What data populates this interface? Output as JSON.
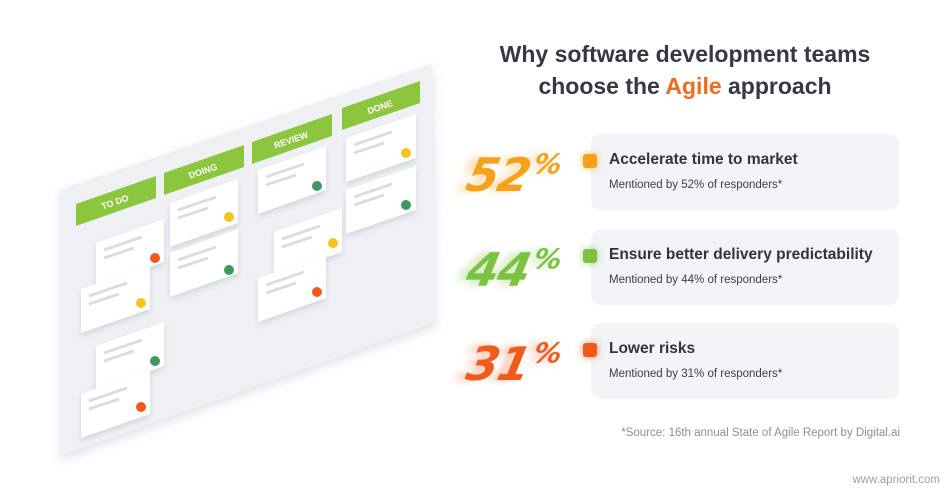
{
  "title": {
    "line1": "Why software development teams",
    "line2_prefix": "choose the ",
    "line2_accent": "Agile",
    "line2_suffix": " approach"
  },
  "board": {
    "columns": [
      "TO DO",
      "DOING",
      "REVIEW",
      "DONE"
    ],
    "colors": {
      "column_header": "#8cc63f",
      "board": "#eef0f4",
      "card": "#ffffff"
    }
  },
  "stats": [
    {
      "percent": "52",
      "sign": "%",
      "heading": "Accelerate time to market",
      "sub": "Mentioned by 52% of responders*",
      "color": "#f7a11a"
    },
    {
      "percent": "44",
      "sign": "%",
      "heading": "Ensure better delivery predictability",
      "sub": "Mentioned by 44% of responders*",
      "color": "#7cc242"
    },
    {
      "percent": "31",
      "sign": "%",
      "heading": "Lower risks",
      "sub": "Mentioned by 31% of responders*",
      "color": "#f05a1a"
    }
  ],
  "source": "*Source: 16th annual State of Agile Report by Digital.ai",
  "site": "www.apriorit.com",
  "colors": {
    "accent": "#f26a1b",
    "title": "#343943"
  }
}
